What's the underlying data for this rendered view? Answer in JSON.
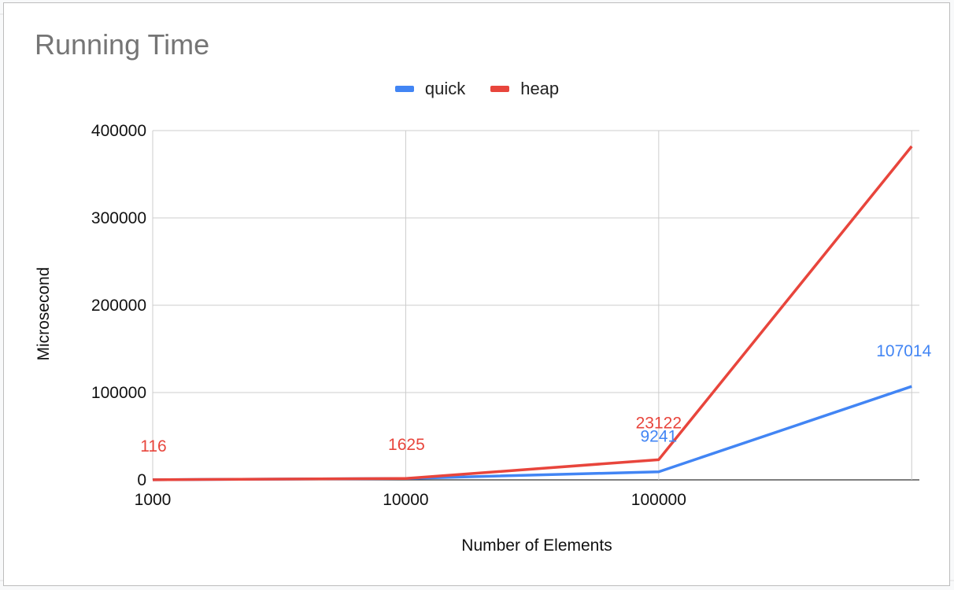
{
  "chart_data": {
    "type": "line",
    "title": "Running Time",
    "xlabel": "Number of Elements",
    "ylabel": "Microsecond",
    "x": [
      "1000",
      "10000",
      "100000",
      "1000000"
    ],
    "x_tick_labels": [
      "1000",
      "10000",
      "100000"
    ],
    "y_ticks": [
      "0",
      "100000",
      "200000",
      "300000",
      "400000"
    ],
    "ylim": [
      0,
      400000
    ],
    "grid": true,
    "legend_position": "top",
    "series": [
      {
        "name": "quick",
        "color": "#4285f4",
        "values": [
          116,
          1625,
          9241,
          107014
        ],
        "labels": [
          "",
          "",
          "9241",
          "107014"
        ]
      },
      {
        "name": "heap",
        "color": "#e8453c",
        "values": [
          116,
          1625,
          23122,
          382000
        ],
        "labels": [
          "116",
          "1625",
          "23122",
          ""
        ]
      }
    ]
  }
}
